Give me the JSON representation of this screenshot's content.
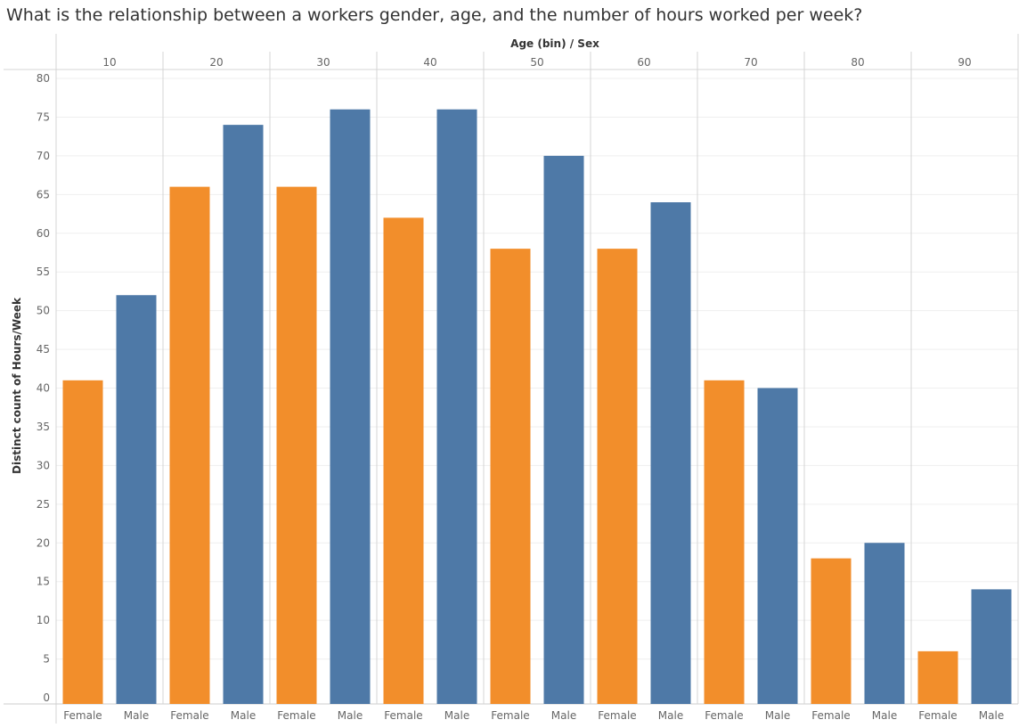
{
  "title": "What is the relationship between a workers gender, age, and the number of hours worked per week?",
  "chart_data": {
    "type": "bar",
    "column_header": "Age (bin)  /  Sex",
    "ylabel": "Distinct count of Hours/Week",
    "ylim": [
      0,
      80
    ],
    "yticks": [
      0,
      5,
      10,
      15,
      20,
      25,
      30,
      35,
      40,
      45,
      50,
      55,
      60,
      65,
      70,
      75,
      80
    ],
    "age_bins": [
      "10",
      "20",
      "30",
      "40",
      "50",
      "60",
      "70",
      "80",
      "90"
    ],
    "sex_categories": [
      "Female",
      "Male"
    ],
    "colors": {
      "Female": "#f28e2b",
      "Male": "#4e79a7"
    },
    "series": [
      {
        "name": "Female",
        "values": [
          41,
          66,
          66,
          62,
          58,
          58,
          41,
          18,
          6
        ]
      },
      {
        "name": "Male",
        "values": [
          52,
          74,
          76,
          76,
          70,
          64,
          40,
          20,
          14
        ]
      }
    ]
  }
}
